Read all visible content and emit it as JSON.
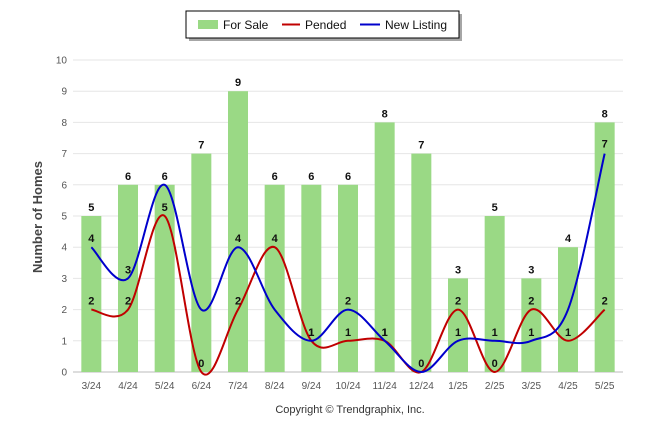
{
  "chart_data": {
    "type": "bar",
    "categories": [
      "3/24",
      "4/24",
      "5/24",
      "6/24",
      "7/24",
      "8/24",
      "9/24",
      "10/24",
      "11/24",
      "12/24",
      "1/25",
      "2/25",
      "3/25",
      "4/25",
      "5/25"
    ],
    "ylabel": "Number of Homes",
    "xlabel": "",
    "ylim": [
      0,
      10
    ],
    "yticks": [
      0,
      1,
      2,
      3,
      4,
      5,
      6,
      7,
      8,
      9,
      10
    ],
    "grid": true,
    "legend_position": "top-center",
    "series": [
      {
        "name": "For Sale",
        "type": "bar",
        "color": "#9ad985",
        "values": [
          5,
          6,
          6,
          7,
          9,
          6,
          6,
          6,
          8,
          7,
          3,
          5,
          3,
          4,
          8
        ]
      },
      {
        "name": "Pended",
        "type": "line",
        "color": "#c00000",
        "values": [
          2,
          2,
          5,
          0,
          2,
          4,
          1,
          1,
          1,
          0,
          2,
          0,
          2,
          1,
          2
        ]
      },
      {
        "name": "New Listing",
        "type": "line",
        "color": "#0000cc",
        "values": [
          4,
          3,
          6,
          2,
          4,
          2,
          1,
          2,
          1,
          0,
          1,
          1,
          1,
          2,
          7
        ]
      }
    ],
    "data_labels": {
      "for_sale": [
        "5",
        "6",
        "6",
        "7",
        "9",
        "6",
        "6",
        "6",
        "8",
        "7",
        "3",
        "5",
        "3",
        "4",
        "8"
      ],
      "pended": [
        "2",
        "2",
        "5",
        "0",
        "2",
        "4",
        "1",
        "1",
        "1",
        "0",
        "2",
        "0",
        "2",
        "1",
        "2"
      ],
      "new_listing": [
        "4",
        "3",
        "",
        "",
        "4",
        "",
        "1",
        "2",
        "1",
        "",
        "1",
        "1",
        "1",
        "",
        ""
      ],
      "new_listing_positions": [
        0,
        1,
        4,
        6,
        7,
        8,
        10,
        11,
        12
      ],
      "extra_labels": [
        "7"
      ]
    },
    "legend": [
      "For Sale",
      "Pended",
      "New Listing"
    ]
  },
  "footer": {
    "copyright": "Copyright © Trendgraphix, Inc."
  }
}
